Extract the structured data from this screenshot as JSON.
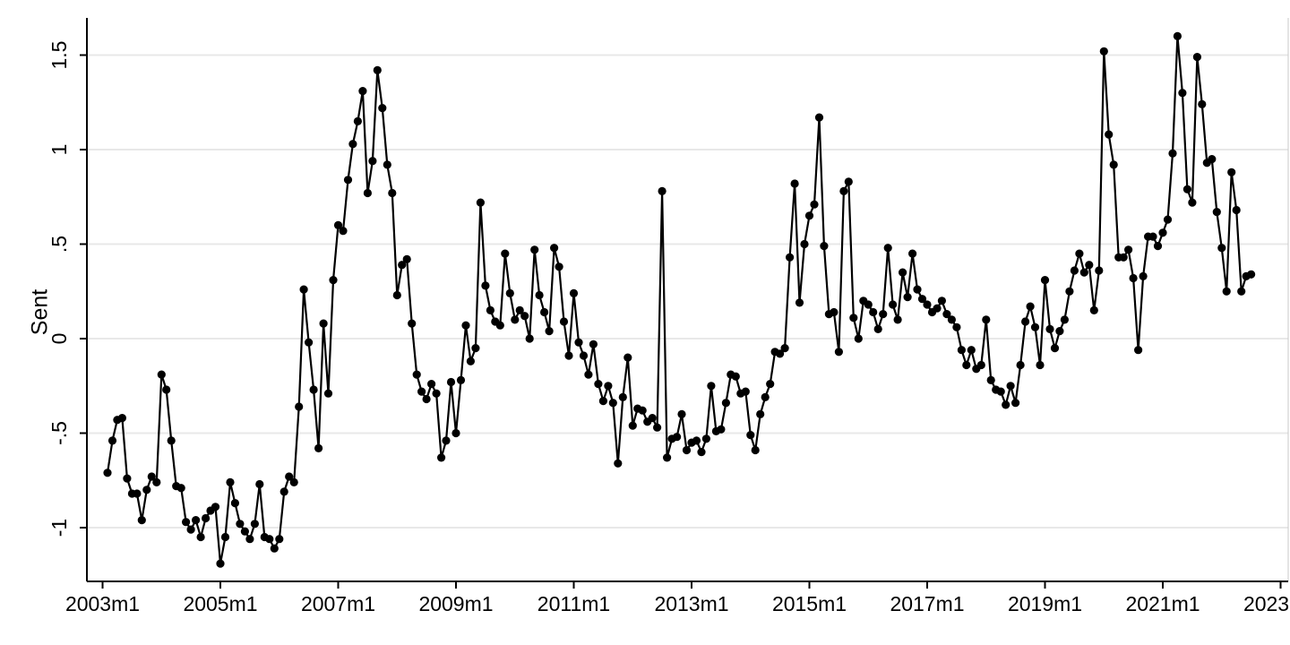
{
  "chart_data": {
    "type": "line",
    "title": "",
    "xlabel": "",
    "ylabel": "Sent",
    "series_name": "Sent",
    "marker": "filled-circle",
    "line_color": "#000000",
    "marker_color": "#000000",
    "grid_color": "#e8e8e8",
    "axis_color": "#000000",
    "background_color": "#ffffff",
    "legend": "none",
    "grid": "horizontal-only",
    "x_start": "2003m2",
    "x_freq": "monthly",
    "x_tick_labels": [
      "2003m1",
      "2005m1",
      "2007m1",
      "2009m1",
      "2011m1",
      "2013m1",
      "2015m1",
      "2017m1",
      "2019m1",
      "2021m1",
      "2023m1"
    ],
    "y_tick_labels": [
      "1.5",
      "1",
      ".5",
      "0",
      "-.5",
      "-1"
    ],
    "y_tick_values": [
      1.5,
      1,
      0.5,
      0,
      -0.5,
      -1
    ],
    "ylim": [
      -1.3,
      1.7
    ],
    "values": [
      -0.71,
      -0.54,
      -0.43,
      -0.42,
      -0.74,
      -0.82,
      -0.82,
      -0.96,
      -0.8,
      -0.73,
      -0.76,
      -0.19,
      -0.27,
      -0.54,
      -0.78,
      -0.79,
      -0.97,
      -1.01,
      -0.96,
      -1.05,
      -0.95,
      -0.91,
      -0.89,
      -1.19,
      -1.05,
      -0.76,
      -0.87,
      -0.98,
      -1.02,
      -1.06,
      -0.98,
      -0.77,
      -1.05,
      -1.06,
      -1.11,
      -1.06,
      -0.81,
      -0.73,
      -0.76,
      -0.36,
      0.26,
      -0.02,
      -0.27,
      -0.58,
      0.08,
      -0.29,
      0.31,
      0.6,
      0.57,
      0.84,
      1.03,
      1.15,
      1.31,
      0.77,
      0.94,
      1.42,
      1.22,
      0.92,
      0.77,
      0.23,
      0.39,
      0.42,
      0.08,
      -0.19,
      -0.28,
      -0.32,
      -0.24,
      -0.29,
      -0.63,
      -0.54,
      -0.23,
      -0.5,
      -0.22,
      0.07,
      -0.12,
      -0.05,
      0.72,
      0.28,
      0.15,
      0.09,
      0.07,
      0.45,
      0.24,
      0.1,
      0.15,
      0.12,
      0.0,
      0.47,
      0.23,
      0.14,
      0.04,
      0.48,
      0.38,
      0.09,
      -0.09,
      0.24,
      -0.02,
      -0.09,
      -0.19,
      -0.03,
      -0.24,
      -0.33,
      -0.25,
      -0.34,
      -0.66,
      -0.31,
      -0.1,
      -0.46,
      -0.37,
      -0.38,
      -0.44,
      -0.42,
      -0.47,
      0.78,
      -0.63,
      -0.53,
      -0.52,
      -0.4,
      -0.59,
      -0.55,
      -0.54,
      -0.6,
      -0.53,
      -0.25,
      -0.49,
      -0.48,
      -0.34,
      -0.19,
      -0.2,
      -0.29,
      -0.28,
      -0.51,
      -0.59,
      -0.4,
      -0.31,
      -0.24,
      -0.07,
      -0.08,
      -0.05,
      0.43,
      0.82,
      0.19,
      0.5,
      0.65,
      0.71,
      1.17,
      0.49,
      0.13,
      0.14,
      -0.07,
      0.78,
      0.83,
      0.11,
      0.0,
      0.2,
      0.18,
      0.14,
      0.05,
      0.13,
      0.48,
      0.18,
      0.1,
      0.35,
      0.22,
      0.45,
      0.26,
      0.21,
      0.18,
      0.14,
      0.16,
      0.2,
      0.13,
      0.1,
      0.06,
      -0.06,
      -0.14,
      -0.06,
      -0.16,
      -0.14,
      0.1,
      -0.22,
      -0.27,
      -0.28,
      -0.35,
      -0.25,
      -0.34,
      -0.14,
      0.09,
      0.17,
      0.06,
      -0.14,
      0.31,
      0.05,
      -0.05,
      0.04,
      0.1,
      0.25,
      0.36,
      0.45,
      0.35,
      0.39,
      0.15,
      0.36,
      1.52,
      1.08,
      0.92,
      0.43,
      0.43,
      0.47,
      0.32,
      -0.06,
      0.33,
      0.54,
      0.54,
      0.49,
      0.56,
      0.63,
      0.98,
      1.6,
      1.3,
      0.79,
      0.72,
      1.49,
      1.24,
      0.93,
      0.95,
      0.67,
      0.48,
      0.25,
      0.88,
      0.68,
      0.25,
      0.33,
      0.34
    ]
  }
}
